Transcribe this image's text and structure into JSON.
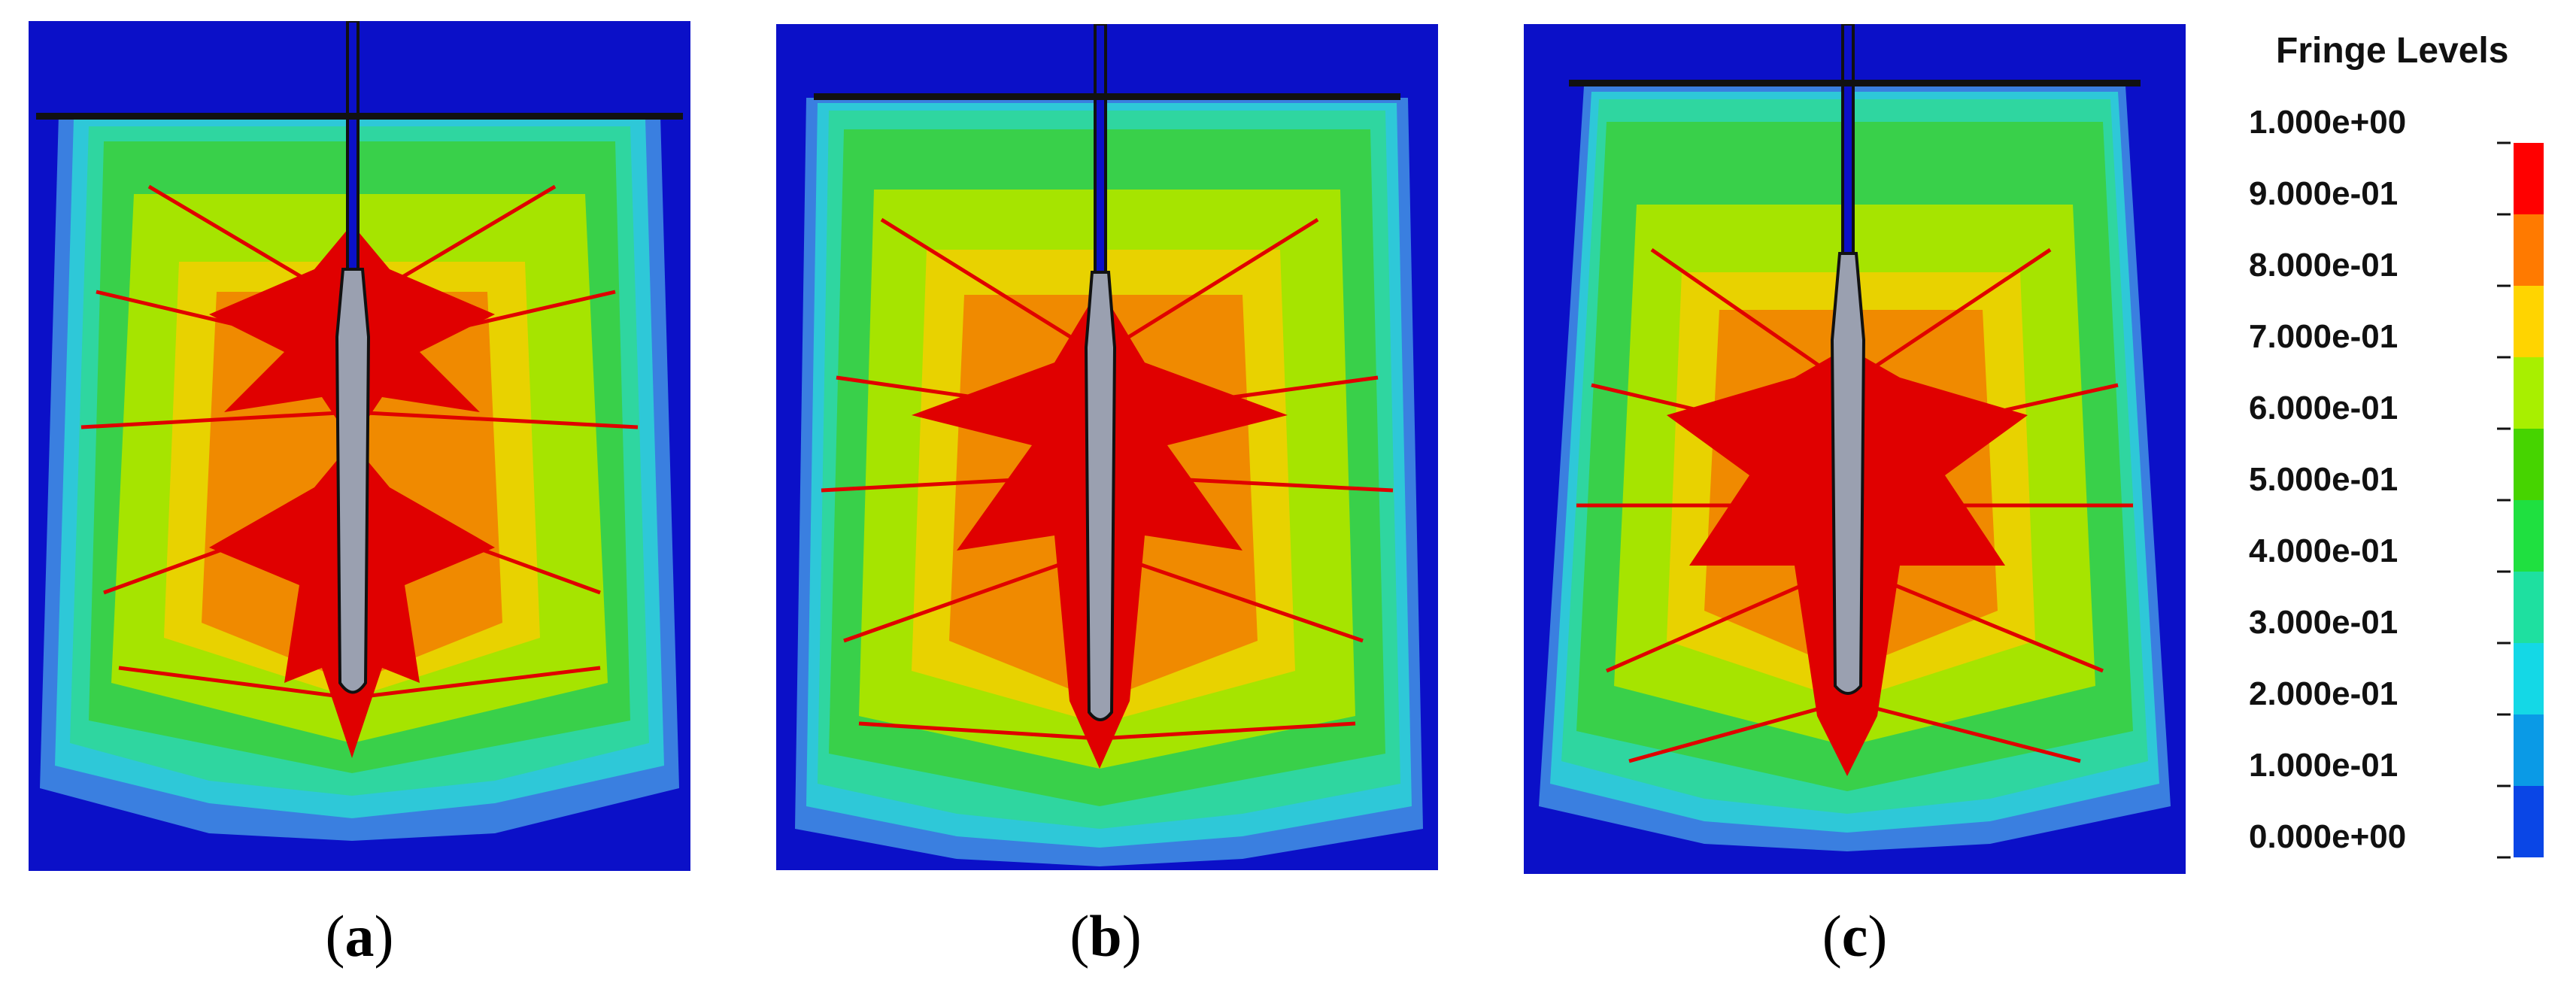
{
  "panels": [
    {
      "id": "a",
      "caption_letter": "a"
    },
    {
      "id": "b",
      "caption_letter": "b"
    },
    {
      "id": "c",
      "caption_letter": "c"
    }
  ],
  "caption_open": "(",
  "caption_close": ")",
  "legend": {
    "title": "Fringe Levels",
    "levels": [
      "1.000e+00",
      "9.000e-01",
      "8.000e-01",
      "7.000e-01",
      "6.000e-01",
      "5.000e-01",
      "4.000e-01",
      "3.000e-01",
      "2.000e-01",
      "1.000e-01",
      "0.000e+00"
    ],
    "colors": [
      "#ff0000",
      "#ff7a00",
      "#ffd400",
      "#a8ef00",
      "#46d400",
      "#1fe040",
      "#1ee0a0",
      "#14d8e6",
      "#0a9ae6",
      "#0a46e6"
    ]
  },
  "palette": {
    "background": "#0b10c8",
    "blue_light": "#3a7fe0",
    "cyan": "#2ec8d8",
    "teal": "#2fd6a0",
    "green": "#39d04a",
    "yellow_green": "#a6e400",
    "yellow": "#e8d200",
    "orange": "#f08a00",
    "red": "#e00000",
    "shaft": "#9aa0b0",
    "bar": "#111111"
  }
}
